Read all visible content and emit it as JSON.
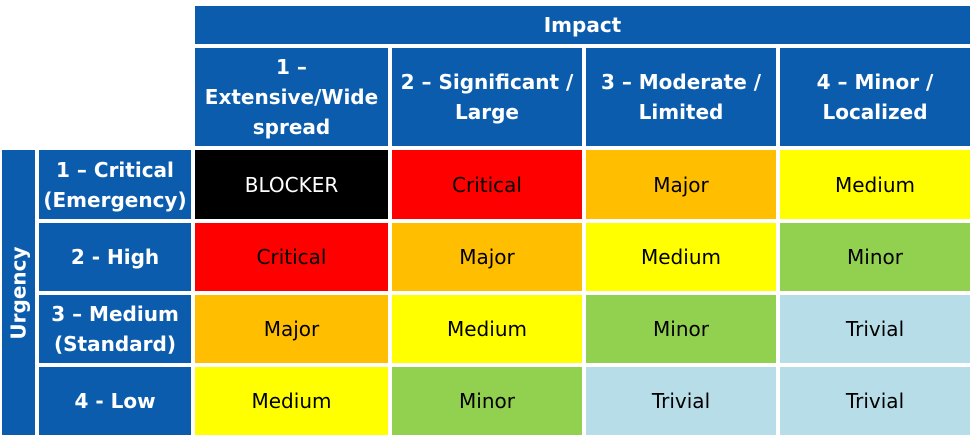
{
  "impact_title": "Impact",
  "urgency_title": "Urgency",
  "impact_headers": [
    "1 –\nExtensive/Wide\nspread",
    "2 – Significant /\nLarge",
    "3 – Moderate /\nLimited",
    "4 – Minor /\nLocalized"
  ],
  "urgency_rows": [
    {
      "label": "1 – Critical\n(Emergency)",
      "cells": [
        "BLOCKER",
        "Critical",
        "Major",
        "Medium"
      ]
    },
    {
      "label": "2 - High",
      "cells": [
        "Critical",
        "Major",
        "Medium",
        "Minor"
      ]
    },
    {
      "label": "3 – Medium\n(Standard)",
      "cells": [
        "Major",
        "Medium",
        "Minor",
        "Trivial"
      ]
    },
    {
      "label": "4 - Low",
      "cells": [
        "Medium",
        "Minor",
        "Trivial",
        "Trivial"
      ]
    }
  ],
  "colors": {
    "header_blue": "#0b5cad",
    "BLOCKER": "#000000",
    "Critical": "#ff0000",
    "Major": "#ffbf00",
    "Medium": "#ffff00",
    "Minor": "#92d050",
    "Trivial": "#b7dde8"
  }
}
